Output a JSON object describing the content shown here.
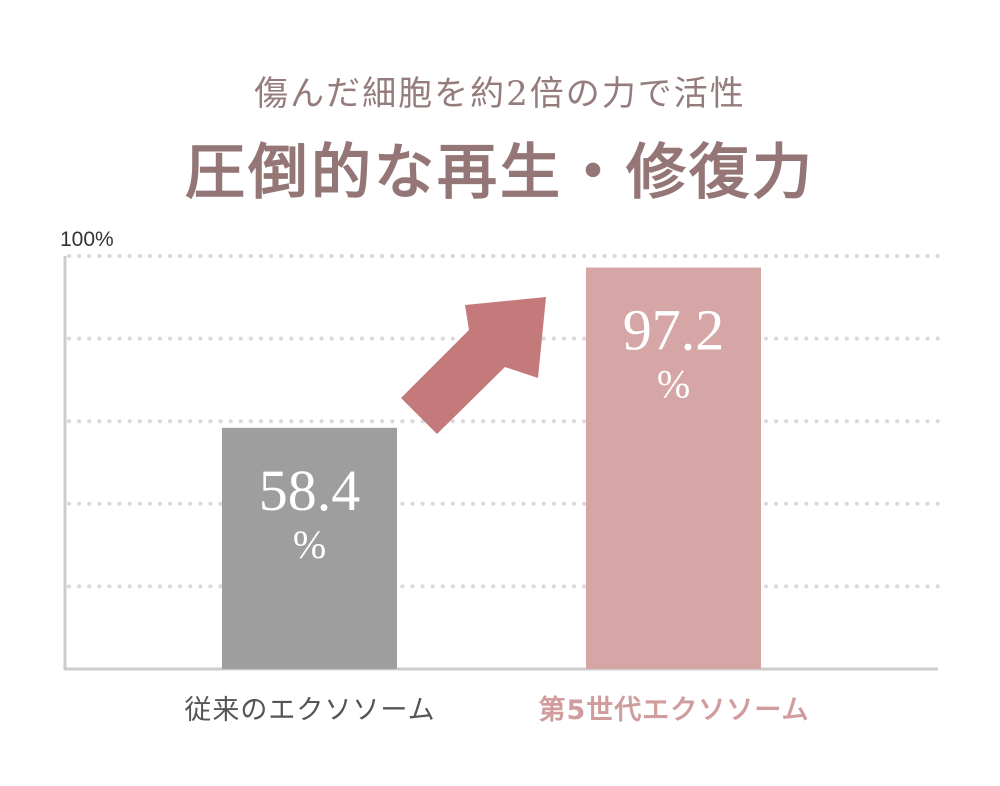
{
  "header": {
    "subtitle": "傷んだ細胞を約2倍の力で活性",
    "title": "圧倒的な再生・修復力"
  },
  "chart_data": {
    "type": "bar",
    "categories": [
      "従来のエクソソーム",
      "第5世代エクソソーム"
    ],
    "values": [
      58.4,
      97.2
    ],
    "value_labels": [
      "58.4",
      "97.2"
    ],
    "unit": "%",
    "ylim": [
      0,
      100
    ],
    "y_max_label": "100%",
    "gridlines": [
      20,
      40,
      60,
      80,
      100
    ],
    "grid": true,
    "legend": "none",
    "colors": {
      "bar_0": "#9e9e9e",
      "bar_1": "#d6a6a7",
      "arrow": "#c47a7b",
      "grid": "#d9d9d9",
      "axis": "#cccccc"
    }
  }
}
